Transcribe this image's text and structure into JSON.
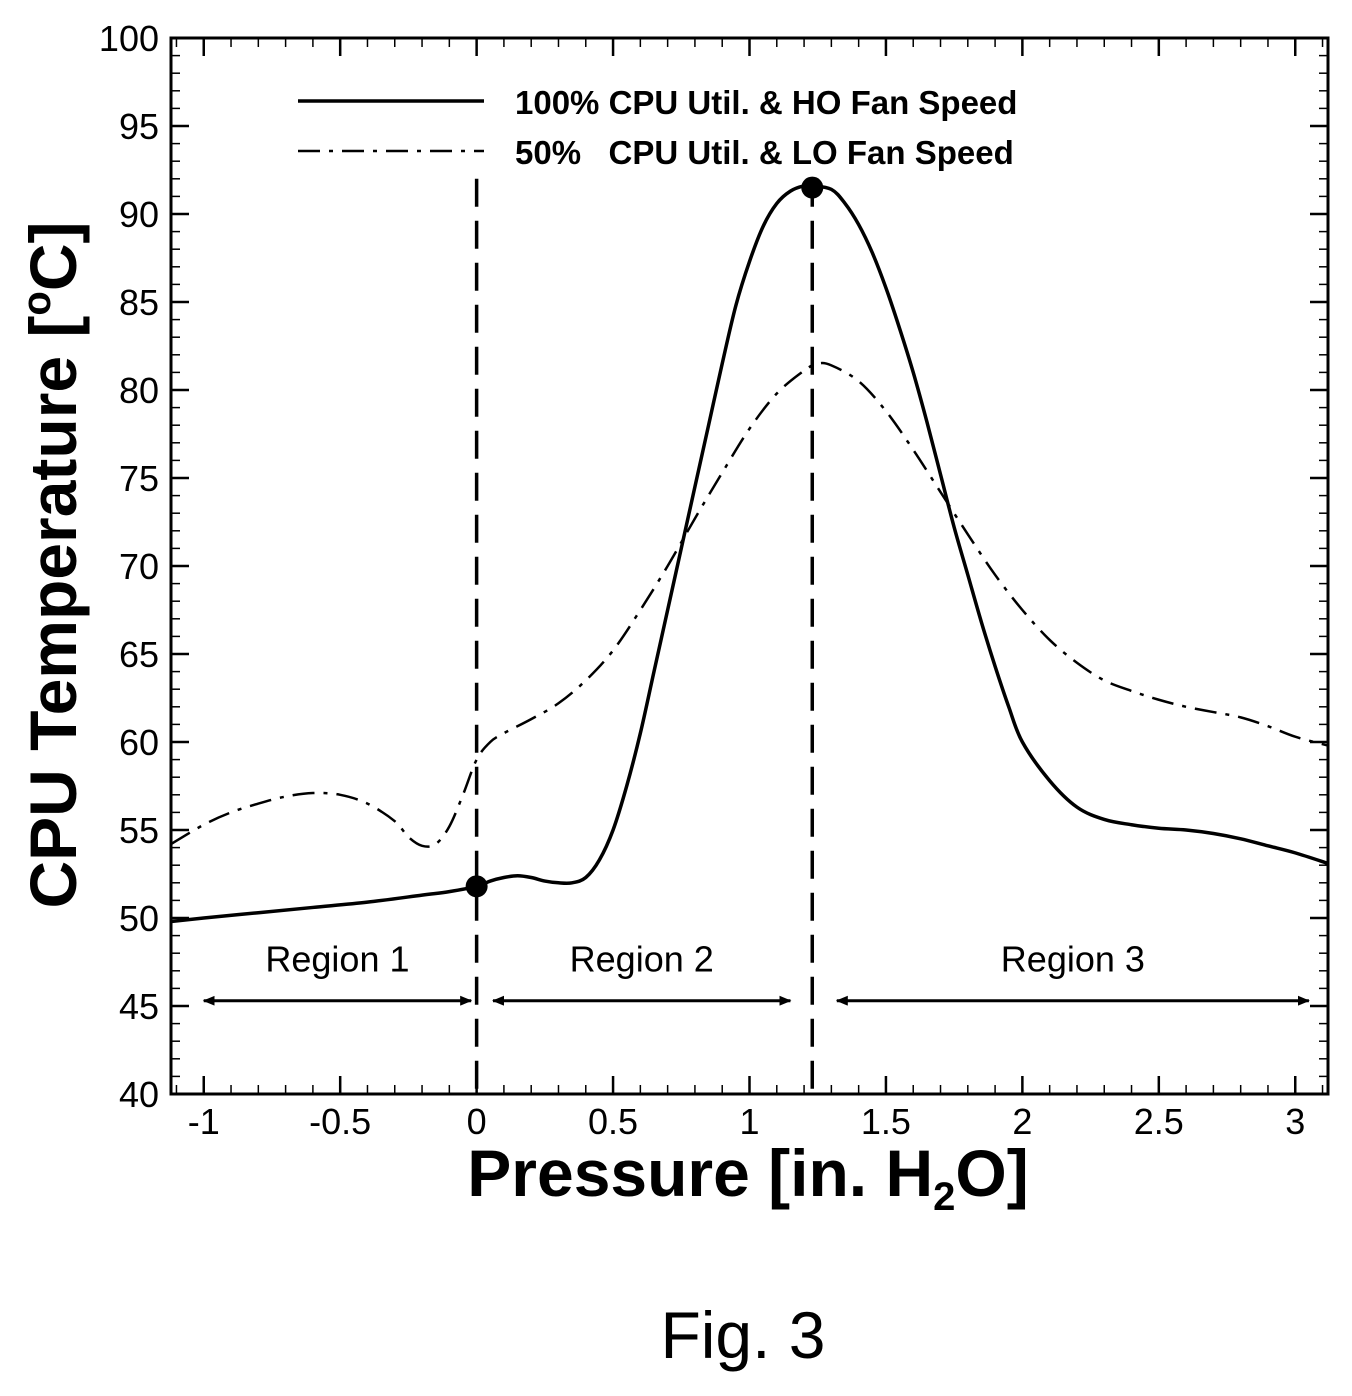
{
  "chart_data": {
    "type": "line",
    "xlabel": "Pressure [in. H",
    "xlabel_sub": "2",
    "xlabel_end": "O]",
    "ylabel": "CPU Temperature  [",
    "ylabel_sup": "o",
    "ylabel_end": "C]",
    "xlim": [
      -1.12,
      3.12
    ],
    "ylim": [
      40,
      100
    ],
    "x_ticks": [
      -1,
      -0.5,
      0,
      0.5,
      1,
      1.5,
      2,
      2.5,
      3
    ],
    "x_tick_labels": [
      "-1",
      "-0.5",
      "0",
      "0.5",
      "1",
      "1.5",
      "2",
      "2.5",
      "3"
    ],
    "y_ticks": [
      40,
      45,
      50,
      55,
      60,
      65,
      70,
      75,
      80,
      85,
      90,
      95,
      100
    ],
    "y_tick_labels": [
      "40",
      "45",
      "50",
      "55",
      "60",
      "65",
      "70",
      "75",
      "80",
      "85",
      "90",
      "95",
      "100"
    ],
    "grid": false,
    "legend_position": "top-center",
    "series": [
      {
        "name": "100% CPU Util. & HO Fan Speed",
        "line_style": "solid",
        "x": [
          -1.12,
          -1.0,
          -0.8,
          -0.6,
          -0.4,
          -0.2,
          -0.1,
          0.0,
          0.05,
          0.1,
          0.15,
          0.2,
          0.25,
          0.3,
          0.35,
          0.4,
          0.45,
          0.5,
          0.55,
          0.6,
          0.65,
          0.7,
          0.75,
          0.8,
          0.85,
          0.9,
          0.95,
          1.0,
          1.05,
          1.1,
          1.15,
          1.2,
          1.23,
          1.3,
          1.35,
          1.4,
          1.45,
          1.5,
          1.55,
          1.6,
          1.65,
          1.7,
          1.75,
          1.8,
          1.85,
          1.9,
          1.95,
          2.0,
          2.1,
          2.2,
          2.3,
          2.4,
          2.5,
          2.6,
          2.7,
          2.8,
          2.9,
          3.0,
          3.12
        ],
        "y": [
          49.8,
          50.0,
          50.3,
          50.6,
          50.9,
          51.3,
          51.5,
          51.8,
          52.1,
          52.3,
          52.4,
          52.3,
          52.1,
          52.0,
          52.0,
          52.3,
          53.3,
          55.0,
          57.5,
          60.5,
          64.0,
          67.5,
          71.0,
          74.5,
          78.0,
          81.5,
          84.8,
          87.3,
          89.3,
          90.6,
          91.3,
          91.6,
          91.6,
          91.4,
          90.6,
          89.4,
          87.8,
          85.8,
          83.5,
          81.0,
          78.2,
          75.2,
          72.2,
          69.5,
          66.8,
          64.3,
          62.0,
          60.0,
          57.8,
          56.3,
          55.6,
          55.3,
          55.1,
          55.0,
          54.8,
          54.5,
          54.1,
          53.7,
          53.1
        ]
      },
      {
        "name": "50%   CPU Util. & LO Fan Speed",
        "line_style": "dashdot",
        "x": [
          -1.12,
          -1.0,
          -0.9,
          -0.8,
          -0.7,
          -0.6,
          -0.5,
          -0.4,
          -0.3,
          -0.25,
          -0.2,
          -0.15,
          -0.1,
          -0.05,
          0.0,
          0.05,
          0.1,
          0.2,
          0.3,
          0.4,
          0.5,
          0.6,
          0.7,
          0.8,
          0.9,
          1.0,
          1.1,
          1.2,
          1.25,
          1.3,
          1.4,
          1.5,
          1.6,
          1.7,
          1.8,
          1.9,
          2.0,
          2.1,
          2.2,
          2.3,
          2.4,
          2.5,
          2.6,
          2.7,
          2.8,
          2.9,
          3.0,
          3.12
        ],
        "y": [
          54.2,
          55.3,
          56.0,
          56.5,
          56.9,
          57.1,
          57.0,
          56.5,
          55.5,
          54.6,
          54.1,
          54.2,
          55.2,
          57.0,
          59.0,
          60.0,
          60.5,
          61.3,
          62.2,
          63.5,
          65.2,
          67.5,
          70.0,
          72.7,
          75.3,
          77.8,
          79.8,
          81.1,
          81.5,
          81.4,
          80.5,
          78.8,
          76.6,
          74.2,
          71.8,
          69.5,
          67.5,
          65.8,
          64.5,
          63.5,
          62.9,
          62.4,
          62.0,
          61.7,
          61.4,
          60.9,
          60.3,
          59.8
        ]
      }
    ],
    "markers": [
      {
        "x": 0.0,
        "y": 51.8
      },
      {
        "x": 1.23,
        "y": 91.5
      }
    ],
    "vertical_dashed_lines": [
      0.0,
      1.23
    ],
    "regions": [
      {
        "label": "Region 1",
        "x_start": -1.0,
        "x_end": -0.02
      },
      {
        "label": "Region 2",
        "x_start": 0.06,
        "x_end": 1.15
      },
      {
        "label": "Region 3",
        "x_start": 1.32,
        "x_end": 3.05
      }
    ],
    "region_arrow_y": 45.3,
    "region_label_y": 47.7
  },
  "caption": "Fig. 3"
}
